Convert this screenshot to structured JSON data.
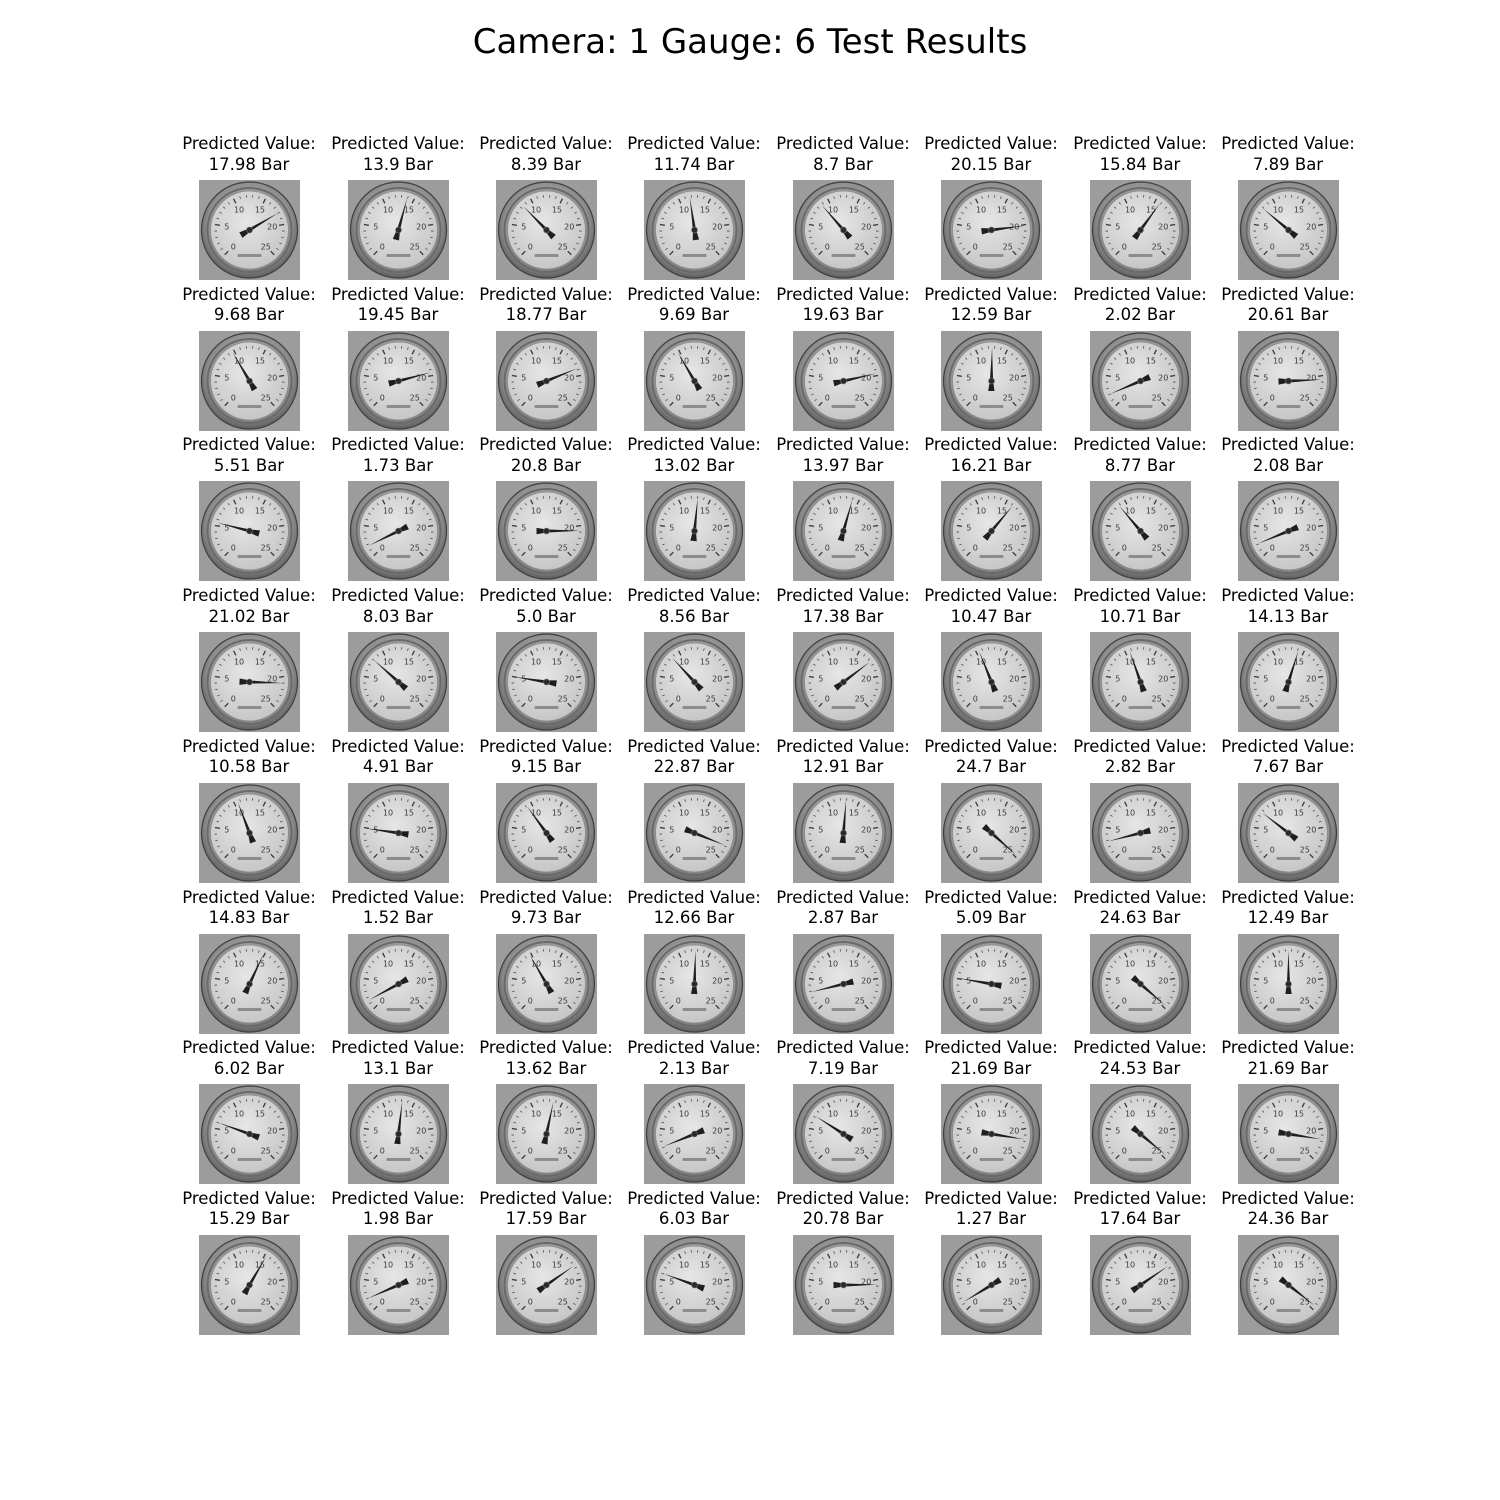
{
  "figure": {
    "title": "Camera: 1 Gauge: 6 Test Results"
  },
  "chart_data": {
    "type": "image_grid",
    "title": "Camera: 1 Gauge: 6 Test Results",
    "rows": 8,
    "cols": 8,
    "caption_label": "Predicted Value:",
    "unit": "Bar",
    "gauge_range": [
      0,
      25
    ],
    "gauge_tick_labels": [
      "0",
      "5",
      "10",
      "15",
      "20",
      "25"
    ],
    "predictions": [
      "17.98",
      "13.9",
      "8.39",
      "11.74",
      "8.7",
      "20.15",
      "15.84",
      "7.89",
      "9.68",
      "19.45",
      "18.77",
      "9.69",
      "19.63",
      "12.59",
      "2.02",
      "20.61",
      "5.51",
      "1.73",
      "20.8",
      "13.02",
      "13.97",
      "16.21",
      "8.77",
      "2.08",
      "21.02",
      "8.03",
      "5.0",
      "8.56",
      "17.38",
      "10.47",
      "10.71",
      "14.13",
      "10.58",
      "4.91",
      "9.15",
      "22.87",
      "12.91",
      "24.7",
      "2.82",
      "7.67",
      "14.83",
      "1.52",
      "9.73",
      "12.66",
      "2.87",
      "5.09",
      "24.63",
      "12.49",
      "6.02",
      "13.1",
      "13.62",
      "2.13",
      "7.19",
      "21.69",
      "24.53",
      "21.69",
      "15.29",
      "1.98",
      "17.59",
      "6.03",
      "20.78",
      "1.27",
      "17.64",
      "24.36"
    ]
  }
}
